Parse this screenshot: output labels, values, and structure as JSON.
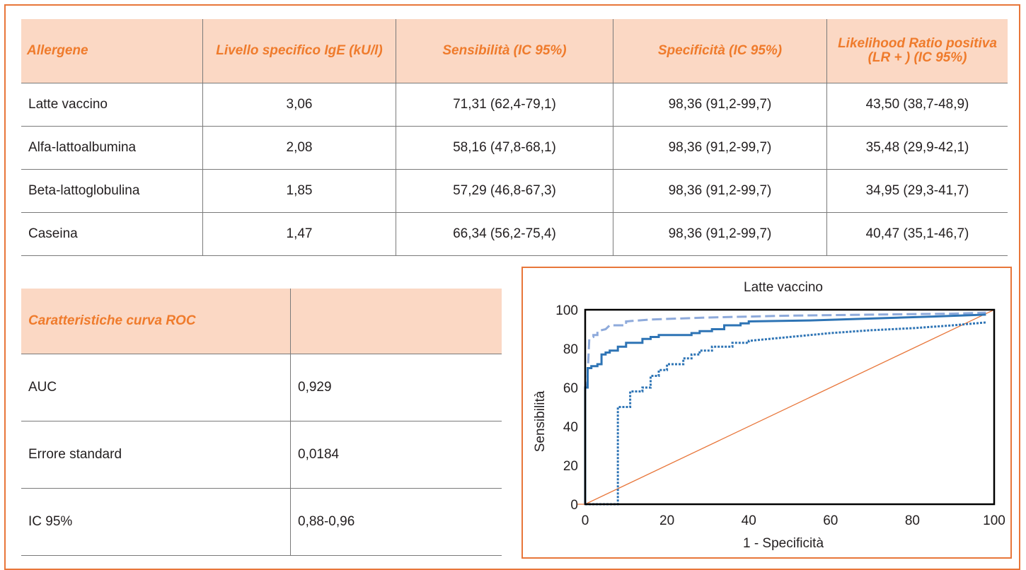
{
  "top_table": {
    "headers": [
      "Allergene",
      "Livello specifico IgE (kU/l)",
      "Sensibilità (IC 95%)",
      "Specificità (IC 95%)",
      "Likelihood Ratio positiva (LR + ) (IC 95%)"
    ],
    "rows": [
      [
        "Latte vaccino",
        "3,06",
        "71,31 (62,4-79,1)",
        "98,36 (91,2-99,7)",
        "43,50 (38,7-48,9)"
      ],
      [
        "Alfa-lattoalbumina",
        "2,08",
        "58,16 (47,8-68,1)",
        "98,36 (91,2-99,7)",
        "35,48 (29,9-42,1)"
      ],
      [
        "Beta-lattoglobulina",
        "1,85",
        "57,29 (46,8-67,3)",
        "98,36 (91,2-99,7)",
        "34,95 (29,3-41,7)"
      ],
      [
        "Caseina",
        "1,47",
        "66,34 (56,2-75,4)",
        "98,36 (91,2-99,7)",
        "40,47 (35,1-46,7)"
      ]
    ]
  },
  "roc_table": {
    "header": "Caratteristiche curva ROC",
    "header_value": "",
    "rows": [
      [
        "AUC",
        "0,929"
      ],
      [
        "Errore standard",
        "0,0184"
      ],
      [
        "IC 95%",
        "0,88-0,96"
      ]
    ]
  },
  "colors": {
    "accent": "#ef7b2c",
    "header_bg": "#fbd8c4",
    "curve": "#2e74b5",
    "upper_ci": "#8eaadb",
    "diagonal": "#e8763a"
  },
  "chart_data": {
    "type": "line",
    "title": "Latte vaccino",
    "xlabel": "1 - Specificità",
    "ylabel": "Sensibilità",
    "xlim": [
      0,
      100
    ],
    "ylim": [
      0,
      100
    ],
    "x_ticks": [
      0,
      20,
      40,
      60,
      80,
      100
    ],
    "y_ticks": [
      0,
      20,
      40,
      60,
      80,
      100
    ],
    "grid": false,
    "series": [
      {
        "style": "solid",
        "points": [
          [
            0,
            0
          ],
          [
            0,
            0
          ],
          [
            0,
            60
          ],
          [
            0.6,
            60
          ],
          [
            0.6,
            70
          ],
          [
            1.5,
            70
          ],
          [
            1.5,
            71
          ],
          [
            3,
            71
          ],
          [
            3,
            72
          ],
          [
            4,
            72
          ],
          [
            4,
            77
          ],
          [
            5,
            77
          ],
          [
            5,
            78
          ],
          [
            6,
            78
          ],
          [
            6,
            79
          ],
          [
            8,
            79
          ],
          [
            8,
            81
          ],
          [
            10,
            81
          ],
          [
            10,
            83
          ],
          [
            14,
            83
          ],
          [
            14,
            85
          ],
          [
            16,
            85
          ],
          [
            16,
            86
          ],
          [
            18,
            86
          ],
          [
            18,
            87
          ],
          [
            26,
            87
          ],
          [
            26,
            88
          ],
          [
            28,
            88
          ],
          [
            28,
            89
          ],
          [
            31,
            89
          ],
          [
            31,
            90
          ],
          [
            34,
            90
          ],
          [
            34,
            92
          ],
          [
            38,
            92
          ],
          [
            38,
            93
          ],
          [
            40,
            93
          ],
          [
            40,
            94
          ],
          [
            55,
            94.5
          ],
          [
            70,
            95.5
          ],
          [
            85,
            96.5
          ],
          [
            98,
            97.5
          ]
        ]
      },
      {
        "style": "dashed",
        "points": [
          [
            0,
            0
          ],
          [
            0,
            60
          ],
          [
            0.5,
            62
          ],
          [
            1,
            85
          ],
          [
            2,
            86
          ],
          [
            2,
            87
          ],
          [
            3,
            87
          ],
          [
            3,
            89
          ],
          [
            5,
            90
          ],
          [
            6,
            92
          ],
          [
            10,
            92
          ],
          [
            10,
            94
          ],
          [
            16,
            95
          ],
          [
            30,
            96
          ],
          [
            50,
            97
          ],
          [
            70,
            97.5
          ],
          [
            90,
            98
          ],
          [
            98,
            98.5
          ]
        ]
      },
      {
        "style": "dotted",
        "points": [
          [
            0,
            0
          ],
          [
            8,
            0
          ],
          [
            8,
            50
          ],
          [
            11,
            50
          ],
          [
            11,
            58
          ],
          [
            14,
            58
          ],
          [
            14,
            60
          ],
          [
            16,
            60
          ],
          [
            16,
            66
          ],
          [
            18,
            66
          ],
          [
            18,
            69
          ],
          [
            20,
            69
          ],
          [
            20,
            72
          ],
          [
            24,
            72
          ],
          [
            24,
            75
          ],
          [
            26,
            75
          ],
          [
            26,
            77
          ],
          [
            28,
            77
          ],
          [
            28,
            79
          ],
          [
            31,
            79
          ],
          [
            31,
            81
          ],
          [
            36,
            81
          ],
          [
            36,
            83
          ],
          [
            40,
            83
          ],
          [
            40,
            84
          ],
          [
            50,
            86
          ],
          [
            60,
            88
          ],
          [
            70,
            89.5
          ],
          [
            80,
            90.5
          ],
          [
            90,
            92
          ],
          [
            98,
            93.5
          ]
        ]
      },
      {
        "style": "reference",
        "points": [
          [
            -2,
            0
          ],
          [
            0,
            0
          ],
          [
            100,
            100
          ]
        ]
      }
    ]
  }
}
